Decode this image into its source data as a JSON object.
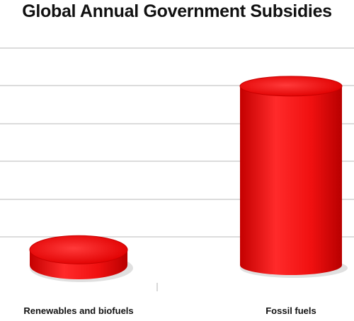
{
  "chart_data": {
    "type": "bar",
    "title": "Global Annual Government Subsidies",
    "categories": [
      "Renewables and biofuels",
      "Fossil fuels"
    ],
    "values": [
      10,
      83
    ],
    "ylim": [
      0,
      100
    ],
    "grid": true,
    "legend": "none",
    "bar_color": "#ee1111"
  }
}
